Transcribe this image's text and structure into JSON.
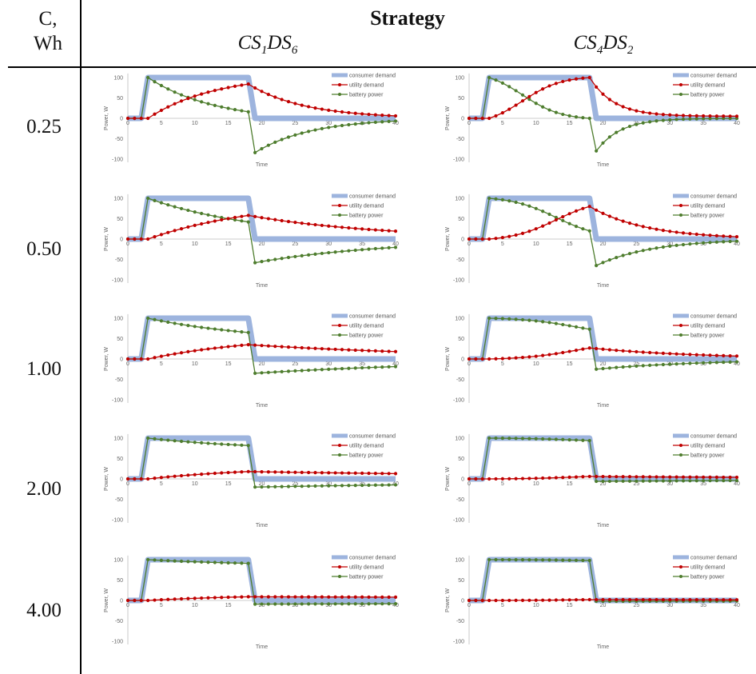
{
  "header": {
    "col_label_line1": "C,",
    "col_label_line2": "Wh",
    "strategy_label": "Strategy",
    "strategy_a_main": "CS",
    "strategy_a_sub1": "1",
    "strategy_a_mid": "DS",
    "strategy_a_sub2": "6",
    "strategy_b_main": "CS",
    "strategy_b_sub1": "4",
    "strategy_b_mid": "DS",
    "strategy_b_sub2": "2"
  },
  "rows": [
    {
      "label": "0.25"
    },
    {
      "label": "0.50"
    },
    {
      "label": "1.00"
    },
    {
      "label": "2.00"
    },
    {
      "label": "4.00"
    }
  ],
  "colors": {
    "consumer_demand": "#9db4de",
    "utility_demand": "#c00000",
    "battery_power": "#4e7d2e"
  },
  "chart_data": [
    {
      "type": "line",
      "row": 0,
      "strategy": "CS1DS6",
      "xlabel": "Time",
      "ylabel": "Power, W",
      "xlim": [
        0,
        40
      ],
      "ylim": [
        -100,
        100
      ],
      "x_ticks": [
        0,
        5,
        10,
        15,
        20,
        25,
        30,
        35,
        40
      ],
      "y_ticks": [
        100,
        50,
        0,
        -50,
        -100
      ],
      "legend": [
        "consumer demand",
        "utility demand",
        "battery power"
      ],
      "legend_position": "top-right",
      "series": [
        {
          "name": "consumer demand",
          "points": [
            [
              0,
              0
            ],
            [
              2,
              0
            ],
            [
              3,
              100
            ],
            [
              18,
              100
            ],
            [
              19,
              0
            ],
            [
              40,
              0
            ]
          ]
        },
        {
          "name": "utility demand",
          "start": 3,
          "end": 40,
          "peak_t": 18,
          "peak_v": 84,
          "rise_k": 0.1,
          "decay_k": 0.12,
          "floor": 0
        },
        {
          "name": "battery power",
          "start": 3,
          "end": 40,
          "on_end": 18,
          "min_v": -84,
          "decay_k": 0.12
        }
      ]
    },
    {
      "type": "line",
      "row": 0,
      "strategy": "CS4DS2",
      "xlabel": "Time",
      "ylabel": "Power, W",
      "xlim": [
        0,
        40
      ],
      "ylim": [
        -100,
        100
      ],
      "x_ticks": [
        0,
        5,
        10,
        15,
        20,
        25,
        30,
        35,
        40
      ],
      "y_ticks": [
        100,
        50,
        0,
        -50,
        -100
      ],
      "legend": [
        "consumer demand",
        "utility demand",
        "battery power"
      ],
      "legend_position": "top-right",
      "series": [
        {
          "name": "consumer demand",
          "points": [
            [
              0,
              0
            ],
            [
              2,
              0
            ],
            [
              3,
              100
            ],
            [
              18,
              100
            ],
            [
              19,
              0
            ],
            [
              40,
              0
            ]
          ]
        },
        {
          "name": "utility demand",
          "start": 3,
          "end": 40,
          "peak_t": 18,
          "peak_v": 100,
          "rise_k": 0.35,
          "decay_k": 0.28,
          "floor": 5,
          "sigmoid": true,
          "mid": 8
        },
        {
          "name": "battery power",
          "start": 3,
          "end": 40,
          "on_end": 18,
          "min_v": -80,
          "decay_k": 0.28
        }
      ]
    },
    {
      "type": "line",
      "row": 1,
      "strategy": "CS1DS6",
      "xlabel": "Time",
      "ylabel": "Power, W",
      "xlim": [
        0,
        40
      ],
      "ylim": [
        -100,
        100
      ],
      "x_ticks": [
        0,
        5,
        10,
        15,
        20,
        25,
        30,
        35,
        40
      ],
      "y_ticks": [
        100,
        50,
        0,
        -50,
        -100
      ],
      "legend": [
        "consumer demand",
        "utility demand",
        "battery power"
      ],
      "legend_position": "top-right",
      "series": [
        {
          "name": "consumer demand",
          "points": [
            [
              0,
              0
            ],
            [
              2,
              0
            ],
            [
              3,
              100
            ],
            [
              18,
              100
            ],
            [
              19,
              0
            ],
            [
              40,
              0
            ]
          ]
        },
        {
          "name": "utility demand",
          "start": 3,
          "end": 40,
          "peak_t": 18,
          "peak_v": 58,
          "rise_k": 0.06,
          "decay_k": 0.05,
          "floor": 0
        },
        {
          "name": "battery power",
          "start": 3,
          "end": 40,
          "on_end": 18,
          "min_v": -58,
          "decay_k": 0.05
        }
      ]
    },
    {
      "type": "line",
      "row": 1,
      "strategy": "CS4DS2",
      "xlabel": "Time",
      "ylabel": "Power, W",
      "xlim": [
        0,
        40
      ],
      "ylim": [
        -100,
        100
      ],
      "x_ticks": [
        0,
        5,
        10,
        15,
        20,
        25,
        30,
        35,
        40
      ],
      "y_ticks": [
        100,
        50,
        0,
        -50,
        -100
      ],
      "legend": [
        "consumer demand",
        "utility demand",
        "battery power"
      ],
      "legend_position": "top-right",
      "series": [
        {
          "name": "consumer demand",
          "points": [
            [
              0,
              0
            ],
            [
              2,
              0
            ],
            [
              3,
              100
            ],
            [
              18,
              100
            ],
            [
              19,
              0
            ],
            [
              40,
              0
            ]
          ]
        },
        {
          "name": "utility demand",
          "start": 3,
          "end": 40,
          "peak_t": 18,
          "peak_v": 80,
          "rise_k": 0.3,
          "decay_k": 0.12,
          "floor": 0,
          "sigmoid": true,
          "mid": 13
        },
        {
          "name": "battery power",
          "start": 3,
          "end": 40,
          "on_end": 18,
          "min_v": -65,
          "decay_k": 0.12
        }
      ]
    },
    {
      "type": "line",
      "row": 2,
      "strategy": "CS1DS6",
      "xlabel": "Time",
      "ylabel": "Power, W",
      "xlim": [
        0,
        40
      ],
      "ylim": [
        -100,
        100
      ],
      "x_ticks": [
        0,
        5,
        10,
        15,
        20,
        25,
        30,
        35,
        40
      ],
      "y_ticks": [
        100,
        50,
        0,
        -50,
        -100
      ],
      "legend": [
        "consumer demand",
        "utility demand",
        "battery power"
      ],
      "legend_position": "top-right",
      "series": [
        {
          "name": "consumer demand",
          "points": [
            [
              0,
              0
            ],
            [
              2,
              0
            ],
            [
              3,
              100
            ],
            [
              18,
              100
            ],
            [
              19,
              0
            ],
            [
              40,
              0
            ]
          ]
        },
        {
          "name": "utility demand",
          "start": 3,
          "end": 40,
          "peak_t": 18,
          "peak_v": 35,
          "rise_k": 0.06,
          "decay_k": 0.03,
          "floor": 0
        },
        {
          "name": "battery power",
          "start": 3,
          "end": 40,
          "on_end": 18,
          "min_v": -35,
          "decay_k": 0.03
        }
      ]
    },
    {
      "type": "line",
      "row": 2,
      "strategy": "CS4DS2",
      "xlabel": "Time",
      "ylabel": "Power, W",
      "xlim": [
        0,
        40
      ],
      "ylim": [
        -100,
        100
      ],
      "x_ticks": [
        0,
        5,
        10,
        15,
        20,
        25,
        30,
        35,
        40
      ],
      "y_ticks": [
        100,
        50,
        0,
        -50,
        -100
      ],
      "legend": [
        "consumer demand",
        "utility demand",
        "battery power"
      ],
      "legend_position": "top-right",
      "series": [
        {
          "name": "consumer demand",
          "points": [
            [
              0,
              0
            ],
            [
              2,
              0
            ],
            [
              3,
              100
            ],
            [
              18,
              100
            ],
            [
              19,
              0
            ],
            [
              40,
              0
            ]
          ]
        },
        {
          "name": "utility demand",
          "start": 3,
          "end": 40,
          "peak_t": 18,
          "peak_v": 27,
          "rise_k": 0.25,
          "decay_k": 0.06,
          "floor": 0,
          "sigmoid": true,
          "mid": 16
        },
        {
          "name": "battery power",
          "start": 3,
          "end": 40,
          "on_end": 18,
          "min_v": -25,
          "decay_k": 0.06
        }
      ]
    },
    {
      "type": "line",
      "row": 3,
      "strategy": "CS1DS6",
      "xlabel": "Time",
      "ylabel": "Power, W",
      "xlim": [
        0,
        40
      ],
      "ylim": [
        -100,
        100
      ],
      "x_ticks": [
        0,
        5,
        10,
        15,
        20,
        25,
        30,
        35,
        40
      ],
      "y_ticks": [
        100,
        50,
        0,
        -50,
        -100
      ],
      "legend": [
        "consumer demand",
        "utility demand",
        "battery power"
      ],
      "legend_position": "top-right",
      "series": [
        {
          "name": "consumer demand",
          "points": [
            [
              0,
              0
            ],
            [
              2,
              0
            ],
            [
              3,
              100
            ],
            [
              18,
              100
            ],
            [
              19,
              0
            ],
            [
              40,
              0
            ]
          ]
        },
        {
          "name": "utility demand",
          "start": 3,
          "end": 40,
          "peak_t": 18,
          "peak_v": 18,
          "rise_k": 0.06,
          "decay_k": 0.015,
          "floor": 0
        },
        {
          "name": "battery power",
          "start": 3,
          "end": 40,
          "on_end": 18,
          "min_v": -20,
          "decay_k": 0.015
        }
      ]
    },
    {
      "type": "line",
      "row": 3,
      "strategy": "CS4DS2",
      "xlabel": "Time",
      "ylabel": "Power, W",
      "xlim": [
        0,
        40
      ],
      "ylim": [
        -100,
        100
      ],
      "x_ticks": [
        0,
        5,
        10,
        15,
        20,
        25,
        30,
        35,
        40
      ],
      "y_ticks": [
        100,
        50,
        0,
        -50,
        -100
      ],
      "legend": [
        "consumer demand",
        "utility demand",
        "battery power"
      ],
      "legend_position": "top-right",
      "series": [
        {
          "name": "consumer demand",
          "points": [
            [
              0,
              0
            ],
            [
              2,
              0
            ],
            [
              3,
              100
            ],
            [
              18,
              100
            ],
            [
              19,
              0
            ],
            [
              40,
              0
            ]
          ]
        },
        {
          "name": "utility demand",
          "start": 3,
          "end": 40,
          "peak_t": 18,
          "peak_v": 6,
          "rise_k": 0.25,
          "decay_k": 0.02,
          "floor": 0,
          "sigmoid": true,
          "mid": 16
        },
        {
          "name": "battery power",
          "start": 3,
          "end": 40,
          "on_end": 18,
          "min_v": -6,
          "decay_k": 0.02
        }
      ]
    },
    {
      "type": "line",
      "row": 4,
      "strategy": "CS1DS6",
      "xlabel": "Time",
      "ylabel": "Power, W",
      "xlim": [
        0,
        40
      ],
      "ylim": [
        -100,
        100
      ],
      "x_ticks": [
        0,
        5,
        10,
        15,
        20,
        25,
        30,
        35,
        40
      ],
      "y_ticks": [
        100,
        50,
        0,
        -50,
        -100
      ],
      "legend": [
        "consumer demand",
        "utility demand",
        "battery power"
      ],
      "legend_position": "top-right",
      "series": [
        {
          "name": "consumer demand",
          "points": [
            [
              0,
              0
            ],
            [
              2,
              0
            ],
            [
              3,
              100
            ],
            [
              18,
              100
            ],
            [
              19,
              0
            ],
            [
              40,
              0
            ]
          ]
        },
        {
          "name": "utility demand",
          "start": 3,
          "end": 40,
          "peak_t": 18,
          "peak_v": 9,
          "rise_k": 0.06,
          "decay_k": 0.005,
          "floor": 0
        },
        {
          "name": "battery power",
          "start": 3,
          "end": 40,
          "on_end": 18,
          "min_v": -9,
          "decay_k": 0.005
        }
      ]
    },
    {
      "type": "line",
      "row": 4,
      "strategy": "CS4DS2",
      "xlabel": "Time",
      "ylabel": "Power, W",
      "xlim": [
        0,
        40
      ],
      "ylim": [
        -100,
        100
      ],
      "x_ticks": [
        0,
        5,
        10,
        15,
        20,
        25,
        30,
        35,
        40
      ],
      "y_ticks": [
        100,
        50,
        0,
        -50,
        -100
      ],
      "legend": [
        "consumer demand",
        "utility demand",
        "battery power"
      ],
      "legend_position": "top-right",
      "series": [
        {
          "name": "consumer demand",
          "points": [
            [
              0,
              0
            ],
            [
              2,
              0
            ],
            [
              3,
              100
            ],
            [
              18,
              100
            ],
            [
              19,
              0
            ],
            [
              40,
              0
            ]
          ]
        },
        {
          "name": "utility demand",
          "start": 3,
          "end": 40,
          "peak_t": 18,
          "peak_v": 2,
          "rise_k": 0.25,
          "decay_k": 0.01,
          "floor": 0,
          "sigmoid": true,
          "mid": 16
        },
        {
          "name": "battery power",
          "start": 3,
          "end": 40,
          "on_end": 18,
          "min_v": -2,
          "decay_k": 0.01
        }
      ]
    }
  ]
}
